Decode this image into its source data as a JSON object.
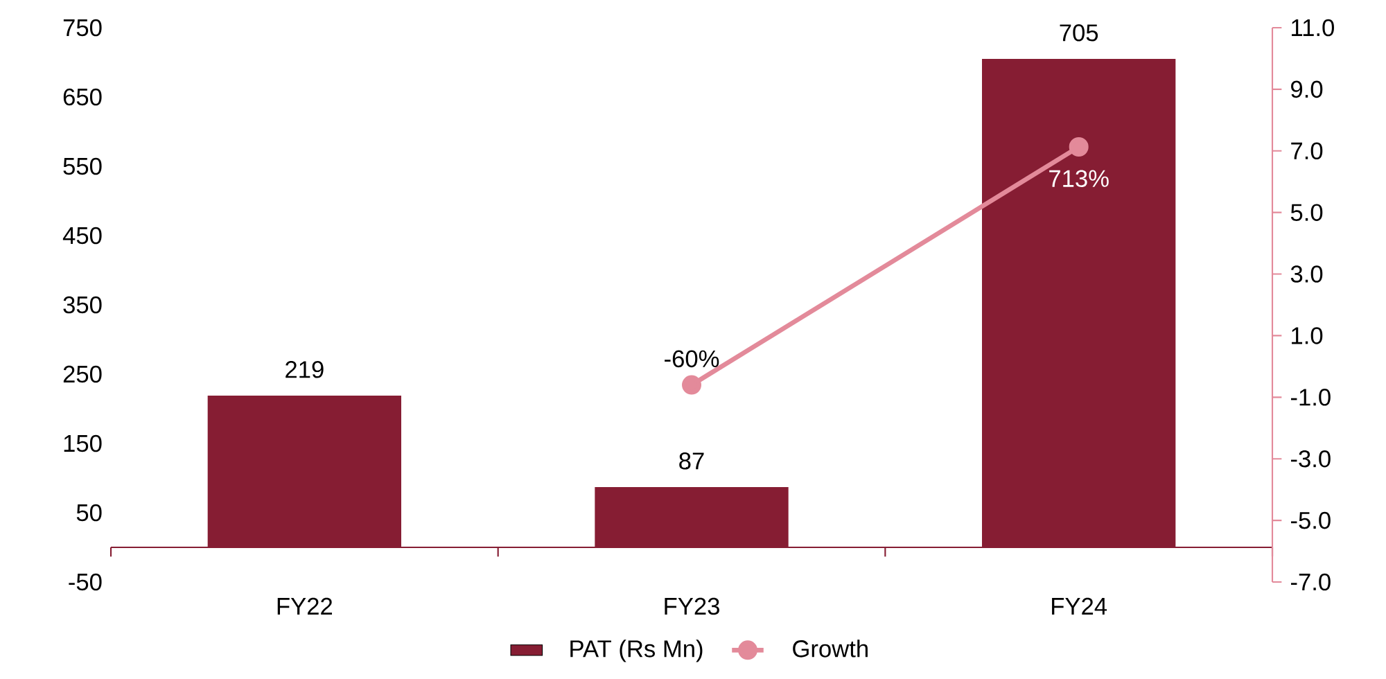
{
  "chart_data": {
    "type": "bar",
    "categories": [
      "FY22",
      "FY23",
      "FY24"
    ],
    "series": [
      {
        "name": "PAT (Rs Mn)",
        "color": "#861d33",
        "values": [
          219,
          87,
          705
        ],
        "value_labels": [
          "219",
          "87",
          "705"
        ]
      },
      {
        "name": "Growth",
        "type": "line",
        "axis": "y2",
        "color": "#e38a9a",
        "values": [
          null,
          -0.6,
          7.13
        ],
        "value_labels": [
          null,
          "-60%",
          "713%"
        ]
      }
    ],
    "ylim": [
      -50,
      750
    ],
    "yticks": [
      -50,
      50,
      150,
      250,
      350,
      450,
      550,
      650,
      750
    ],
    "y2lim": [
      -7,
      11
    ],
    "y2ticks": [
      {
        "value": -7,
        "label": "-7.0"
      },
      {
        "value": -5,
        "label": "-5.0"
      },
      {
        "value": -3,
        "label": "-3.0"
      },
      {
        "value": -1,
        "label": "-1.0"
      },
      {
        "value": 1,
        "label": "1.0"
      },
      {
        "value": 3,
        "label": "3.0"
      },
      {
        "value": 5,
        "label": "5.0"
      },
      {
        "value": 7,
        "label": "7.0"
      },
      {
        "value": 9,
        "label": "9.0"
      },
      {
        "value": 11,
        "label": "11.0"
      }
    ],
    "legend": "bottom",
    "marker": "circle",
    "grid": false
  }
}
